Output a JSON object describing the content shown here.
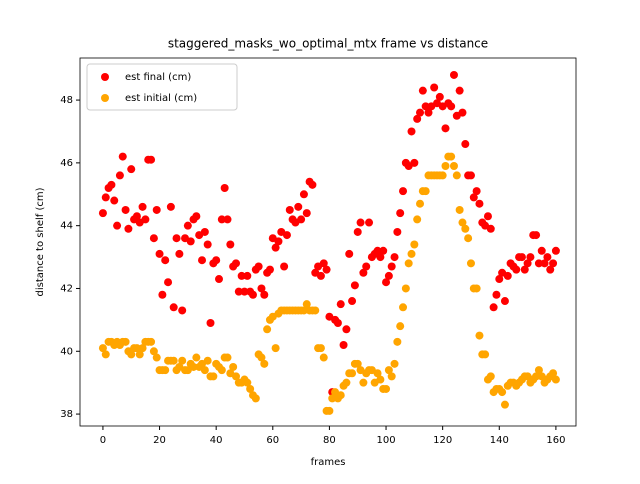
{
  "chart_data": {
    "type": "scatter",
    "title": "staggered_masks_wo_optimal_mtx frame vs distance",
    "xlabel": "frames",
    "ylabel": "distance to shelf (cm)",
    "x": [
      0,
      1,
      2,
      3,
      4,
      5,
      6,
      7,
      8,
      9,
      10,
      11,
      12,
      13,
      14,
      15,
      16,
      17,
      18,
      19,
      20,
      21,
      22,
      23,
      24,
      25,
      26,
      27,
      28,
      29,
      30,
      31,
      32,
      33,
      34,
      35,
      36,
      37,
      38,
      39,
      40,
      41,
      42,
      43,
      44,
      45,
      46,
      47,
      48,
      49,
      50,
      51,
      52,
      53,
      54,
      55,
      56,
      57,
      58,
      59,
      60,
      61,
      62,
      63,
      64,
      65,
      66,
      67,
      68,
      69,
      70,
      71,
      72,
      73,
      74,
      75,
      76,
      77,
      78,
      79,
      80,
      81,
      82,
      83,
      84,
      85,
      86,
      87,
      88,
      89,
      90,
      91,
      92,
      93,
      94,
      95,
      96,
      97,
      98,
      99,
      100,
      101,
      102,
      103,
      104,
      105,
      106,
      107,
      108,
      109,
      110,
      111,
      112,
      113,
      114,
      115,
      116,
      117,
      118,
      119,
      120,
      121,
      122,
      123,
      124,
      125,
      126,
      127,
      128,
      129,
      130,
      131,
      132,
      133,
      134,
      135,
      136,
      137,
      138,
      139,
      140,
      141,
      142,
      143,
      144,
      145,
      146,
      147,
      148,
      149,
      150,
      151,
      152,
      153,
      154,
      155,
      156,
      157,
      158,
      159,
      160
    ],
    "series": [
      {
        "name": "est final (cm)",
        "color": "#ff0000",
        "values": [
          44.4,
          44.9,
          45.2,
          45.3,
          44.8,
          44.0,
          45.6,
          46.2,
          44.5,
          43.9,
          45.8,
          44.2,
          44.3,
          44.1,
          44.6,
          44.2,
          46.1,
          46.1,
          43.6,
          44.5,
          43.1,
          41.8,
          42.9,
          42.2,
          44.6,
          41.4,
          43.6,
          43.1,
          41.3,
          43.6,
          44.0,
          43.5,
          44.2,
          44.3,
          43.7,
          42.9,
          43.8,
          43.4,
          40.9,
          42.8,
          42.9,
          42.3,
          44.2,
          45.2,
          44.2,
          43.4,
          42.7,
          42.8,
          41.9,
          42.4,
          41.9,
          42.4,
          41.9,
          41.8,
          42.6,
          42.7,
          42.0,
          41.8,
          42.5,
          42.6,
          43.6,
          43.3,
          43.5,
          43.8,
          42.7,
          43.7,
          44.5,
          44.2,
          44.1,
          44.6,
          44.2,
          45.0,
          44.4,
          45.4,
          45.3,
          42.5,
          42.7,
          42.4,
          42.8,
          42.6,
          41.1,
          38.7,
          41.0,
          40.9,
          41.5,
          40.2,
          40.7,
          43.1,
          41.6,
          42.1,
          43.8,
          44.1,
          42.5,
          42.7,
          44.1,
          43.0,
          43.1,
          43.2,
          43.0,
          43.2,
          42.2,
          42.4,
          42.7,
          43.0,
          43.8,
          44.4,
          45.1,
          46.0,
          45.9,
          47.0,
          46.0,
          47.4,
          47.6,
          48.3,
          47.8,
          47.6,
          47.8,
          48.4,
          47.9,
          48.1,
          47.8,
          47.1,
          47.9,
          47.8,
          48.8,
          47.5,
          48.3,
          47.6,
          46.6,
          45.6,
          45.6,
          44.9,
          45.1,
          44.7,
          44.1,
          44.0,
          44.3,
          43.9,
          41.4,
          41.8,
          42.3,
          42.5,
          41.6,
          42.4,
          42.8,
          42.7,
          42.6,
          43.0,
          43.0,
          42.6,
          42.8,
          43.0,
          43.7,
          43.7,
          42.8,
          43.2,
          42.8,
          43.0,
          42.6,
          42.8,
          43.2
        ]
      },
      {
        "name": "est initial (cm)",
        "color": "#ffa500",
        "values": [
          40.1,
          39.9,
          40.3,
          40.3,
          40.2,
          40.3,
          40.2,
          40.3,
          40.3,
          40.0,
          39.9,
          40.1,
          40.1,
          39.9,
          40.1,
          40.3,
          40.3,
          40.3,
          40.0,
          39.8,
          39.4,
          39.4,
          39.4,
          39.7,
          39.7,
          39.7,
          39.4,
          39.5,
          39.7,
          39.4,
          39.4,
          39.6,
          39.5,
          39.8,
          39.5,
          39.6,
          39.4,
          39.7,
          39.2,
          39.2,
          39.6,
          39.5,
          39.4,
          39.8,
          39.8,
          39.3,
          39.5,
          39.2,
          39.0,
          39.0,
          39.1,
          39.0,
          38.8,
          38.6,
          38.5,
          39.9,
          39.8,
          39.6,
          40.7,
          41.0,
          41.1,
          40.1,
          41.2,
          41.3,
          41.3,
          41.3,
          41.3,
          41.3,
          41.3,
          41.3,
          41.3,
          41.3,
          41.5,
          41.3,
          41.3,
          41.3,
          40.1,
          40.1,
          39.8,
          38.1,
          38.1,
          38.5,
          38.7,
          38.5,
          38.6,
          38.9,
          39.0,
          39.3,
          39.3,
          39.6,
          39.6,
          39.4,
          39.0,
          39.3,
          39.4,
          39.4,
          39.0,
          39.3,
          39.1,
          38.8,
          38.8,
          39.4,
          39.2,
          39.6,
          40.3,
          40.8,
          41.4,
          42.0,
          42.8,
          43.1,
          43.4,
          44.2,
          44.7,
          45.1,
          45.1,
          45.6,
          45.6,
          45.6,
          45.6,
          45.6,
          45.6,
          45.9,
          46.2,
          46.2,
          45.9,
          45.6,
          44.5,
          44.1,
          43.9,
          43.6,
          42.8,
          42.0,
          42.0,
          40.5,
          39.9,
          39.9,
          39.1,
          39.2,
          38.7,
          38.8,
          38.8,
          38.7,
          38.3,
          38.9,
          39.0,
          39.0,
          38.9,
          39.0,
          39.1,
          39.2,
          39.2,
          39.0,
          39.1,
          39.2,
          39.4,
          39.2,
          39.0,
          39.1,
          39.2,
          39.3,
          39.1
        ]
      }
    ],
    "xlim": [
      -8.1,
      167.1
    ],
    "ylim": [
      37.62,
      49.34
    ],
    "xticks": [
      0,
      20,
      40,
      60,
      80,
      100,
      120,
      140,
      160
    ],
    "yticks": [
      38,
      40,
      42,
      44,
      46,
      48
    ],
    "legend": "upper left"
  }
}
